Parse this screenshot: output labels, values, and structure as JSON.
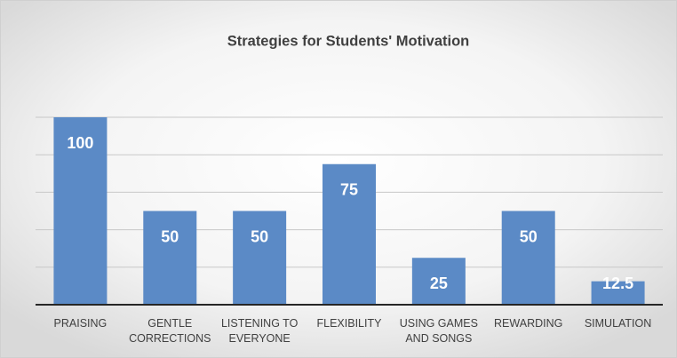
{
  "chart_data": {
    "type": "bar",
    "title": "Strategies for Students' Motivation",
    "categories": [
      "PRAISING",
      "GENTLE CORRECTIONS",
      "LISTENING TO EVERYONE",
      "FLEXIBILITY",
      "USING GAMES AND SONGS",
      "REWARDING",
      "SIMULATION"
    ],
    "values": [
      100,
      50,
      50,
      75,
      25,
      50,
      12.5
    ],
    "color": "#5b8ac6",
    "ylim": [
      0,
      100
    ],
    "yticks": [
      0,
      20,
      40,
      60,
      80,
      100
    ],
    "grid": true
  }
}
